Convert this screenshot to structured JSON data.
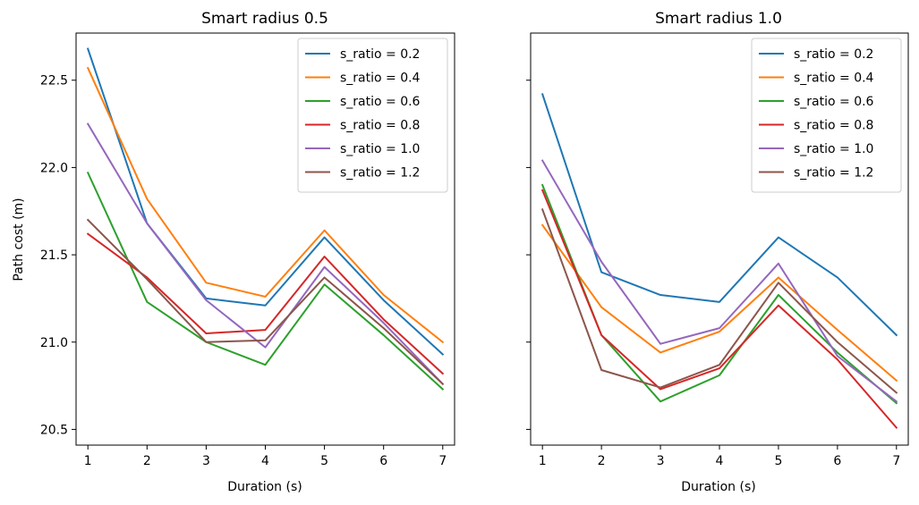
{
  "chart_data": [
    {
      "type": "line",
      "title": "Smart radius 0.5",
      "xlabel": "Duration (s)",
      "ylabel": "Path cost (m)",
      "x": [
        1,
        2,
        3,
        4,
        5,
        6,
        7
      ],
      "xlim": [
        0.8,
        7.2
      ],
      "ylim": [
        20.41,
        22.77
      ],
      "yticks": [
        "20.5",
        "21.0",
        "21.5",
        "22.0",
        "22.5"
      ],
      "ytick_values": [
        20.5,
        21.0,
        21.5,
        22.0,
        22.5
      ],
      "legend_position": "top-right",
      "grid": false,
      "series": [
        {
          "name": "s_ratio = 0.2",
          "color": "#1f77b4",
          "values": [
            22.68,
            21.68,
            21.25,
            21.21,
            21.6,
            21.24,
            20.93
          ]
        },
        {
          "name": "s_ratio = 0.4",
          "color": "#ff7f0e",
          "values": [
            22.57,
            21.82,
            21.34,
            21.26,
            21.64,
            21.27,
            21.0
          ]
        },
        {
          "name": "s_ratio = 0.6",
          "color": "#2ca02c",
          "values": [
            21.97,
            21.23,
            21.0,
            20.87,
            21.33,
            21.04,
            20.73
          ]
        },
        {
          "name": "s_ratio = 0.8",
          "color": "#d62728",
          "values": [
            21.62,
            21.37,
            21.05,
            21.07,
            21.49,
            21.13,
            20.82
          ]
        },
        {
          "name": "s_ratio = 1.0",
          "color": "#9467bd",
          "values": [
            22.25,
            21.68,
            21.24,
            20.97,
            21.43,
            21.11,
            20.76
          ]
        },
        {
          "name": "s_ratio = 1.2",
          "color": "#8c564b",
          "values": [
            21.7,
            21.36,
            21.0,
            21.01,
            21.37,
            21.08,
            20.76
          ]
        }
      ]
    },
    {
      "type": "line",
      "title": "Smart radius 1.0",
      "xlabel": "Duration (s)",
      "ylabel": "",
      "x": [
        1,
        2,
        3,
        4,
        5,
        6,
        7
      ],
      "xlim": [
        0.8,
        7.2
      ],
      "ylim": [
        20.41,
        22.77
      ],
      "yticks": [],
      "ytick_values": [
        20.5,
        21.0,
        21.5,
        22.0,
        22.5
      ],
      "legend_position": "top-right",
      "grid": false,
      "series": [
        {
          "name": "s_ratio = 0.2",
          "color": "#1f77b4",
          "values": [
            22.42,
            21.4,
            21.27,
            21.23,
            21.6,
            21.37,
            21.04
          ]
        },
        {
          "name": "s_ratio = 0.4",
          "color": "#ff7f0e",
          "values": [
            21.67,
            21.2,
            20.94,
            21.06,
            21.37,
            21.07,
            20.78
          ]
        },
        {
          "name": "s_ratio = 0.6",
          "color": "#2ca02c",
          "values": [
            21.9,
            21.04,
            20.66,
            20.81,
            21.27,
            20.94,
            20.65
          ]
        },
        {
          "name": "s_ratio = 0.8",
          "color": "#d62728",
          "values": [
            21.87,
            21.04,
            20.73,
            20.85,
            21.21,
            20.9,
            20.51
          ]
        },
        {
          "name": "s_ratio = 1.0",
          "color": "#9467bd",
          "values": [
            22.04,
            21.46,
            20.99,
            21.08,
            21.45,
            20.92,
            20.66
          ]
        },
        {
          "name": "s_ratio = 1.2",
          "color": "#8c564b",
          "values": [
            21.76,
            20.84,
            20.74,
            20.87,
            21.34,
            21.0,
            20.71
          ]
        }
      ]
    }
  ]
}
